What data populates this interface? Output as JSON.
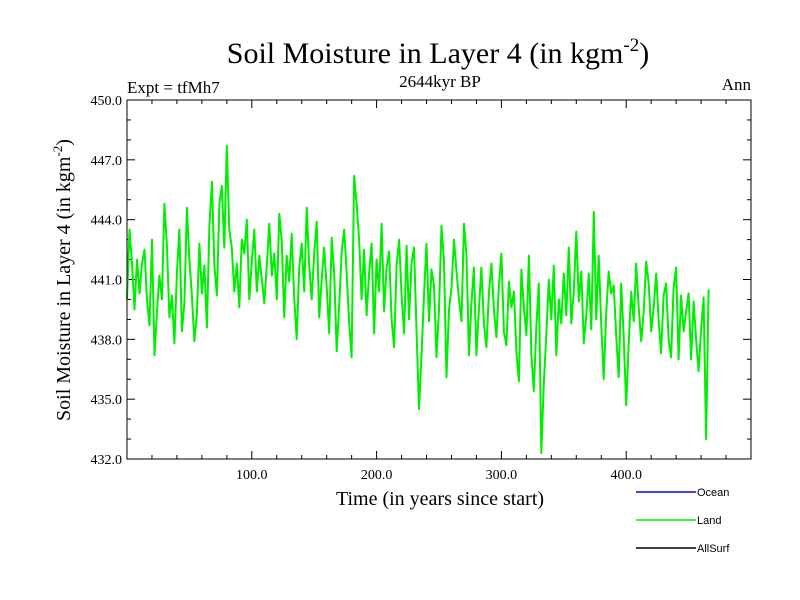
{
  "chart_data": {
    "type": "line",
    "title": {
      "main": "Soil Moisture in Layer 4 (in kgm",
      "sup": "-2",
      "close": ")"
    },
    "subtitle": "2644kyr BP",
    "left_label": "Expt = tfMh7",
    "right_label": "Ann",
    "xlabel": "Time (in years since start)",
    "ylabel": {
      "main": "Soil Moisture in Layer 4 (in kgm",
      "sup": "-2",
      "close": ")"
    },
    "xlim": [
      0,
      500
    ],
    "ylim": [
      432.0,
      450.0
    ],
    "x_ticks": [
      {
        "value": 100,
        "label": "100.0"
      },
      {
        "value": 200,
        "label": "200.0"
      },
      {
        "value": 300,
        "label": "300.0"
      },
      {
        "value": 400,
        "label": "400.0"
      }
    ],
    "y_ticks": [
      {
        "value": 432.0,
        "label": "432.0"
      },
      {
        "value": 435.0,
        "label": "435.0"
      },
      {
        "value": 438.0,
        "label": "438.0"
      },
      {
        "value": 441.0,
        "label": "441.0"
      },
      {
        "value": 444.0,
        "label": "444.0"
      },
      {
        "value": 447.0,
        "label": "447.0"
      },
      {
        "value": 450.0,
        "label": "450.0"
      }
    ],
    "legend": [
      {
        "name": "Ocean",
        "color": "#0000ff"
      },
      {
        "name": "Land",
        "color": "#00ee00"
      },
      {
        "name": "AllSurf",
        "color": "#000000"
      }
    ],
    "series": [
      {
        "name": "Land",
        "color": "#00ee00",
        "x_start": 0,
        "x_step": 2,
        "values": [
          440.0,
          443.5,
          441.8,
          439.5,
          442.0,
          440.3,
          441.8,
          442.5,
          440.0,
          438.7,
          443.0,
          437.2,
          439.4,
          441.2,
          440.0,
          444.8,
          442.7,
          439.1,
          440.2,
          437.8,
          441.3,
          443.5,
          438.4,
          439.8,
          444.6,
          442.0,
          440.2,
          437.9,
          439.3,
          442.8,
          440.3,
          441.7,
          438.6,
          443.7,
          445.9,
          441.7,
          440.2,
          444.8,
          445.7,
          442.6,
          447.7,
          443.5,
          442.6,
          440.4,
          441.8,
          439.6,
          443.0,
          442.3,
          444.0,
          440.0,
          441.9,
          443.5,
          440.4,
          442.2,
          441.0,
          439.8,
          441.7,
          443.8,
          441.2,
          442.3,
          440.0,
          444.3,
          442.9,
          439.1,
          442.2,
          440.9,
          443.3,
          440.1,
          438.0,
          441.6,
          442.8,
          440.4,
          444.6,
          441.7,
          440.0,
          442.3,
          443.9,
          439.1,
          441.0,
          442.6,
          440.6,
          438.3,
          443.1,
          441.3,
          437.4,
          439.7,
          442.4,
          443.5,
          441.4,
          438.9,
          437.1,
          446.2,
          444.8,
          443.0,
          440.0,
          442.5,
          439.2,
          441.3,
          442.8,
          438.3,
          442.0,
          440.4,
          443.8,
          439.4,
          441.6,
          442.4,
          439.0,
          437.6,
          441.7,
          443.0,
          440.2,
          438.3,
          442.7,
          439.0,
          441.8,
          442.6,
          438.5,
          434.5,
          437.2,
          440.2,
          442.8,
          438.9,
          441.5,
          440.7,
          437.1,
          439.5,
          443.7,
          441.9,
          436.1,
          439.5,
          440.6,
          443.0,
          441.4,
          440.0,
          438.9,
          443.8,
          442.2,
          437.2,
          439.8,
          441.6,
          437.2,
          439.5,
          441.6,
          438.8,
          437.6,
          440.3,
          441.8,
          439.5,
          438.1,
          440.7,
          442.3,
          438.4,
          437.7,
          440.9,
          439.6,
          440.4,
          437.4,
          435.9,
          441.5,
          439.6,
          438.2,
          442.2,
          437.2,
          435.4,
          438.6,
          440.8,
          432.3,
          435.8,
          438.2,
          441.0,
          439.0,
          441.7,
          437.2,
          440.0,
          438.8,
          441.3,
          439.2,
          442.6,
          438.8,
          440.4,
          443.4,
          439.9,
          441.4,
          437.8,
          439.2,
          441.3,
          438.5,
          444.4,
          439.0,
          442.2,
          438.8,
          436.0,
          439.3,
          441.4,
          440.3,
          440.7,
          438.2,
          436.1,
          440.8,
          438.1,
          434.7,
          437.8,
          440.4,
          438.9,
          441.8,
          439.6,
          437.9,
          439.4,
          441.9,
          440.8,
          438.4,
          439.6,
          441.3,
          439.0,
          437.3,
          440.2,
          440.8,
          438.0,
          437.1,
          440.6,
          441.6,
          437.0,
          440.2,
          438.4,
          439.4,
          440.3,
          437.0,
          439.9,
          438.0,
          436.4,
          438.5,
          440.1,
          433.0,
          440.5
        ]
      }
    ]
  }
}
